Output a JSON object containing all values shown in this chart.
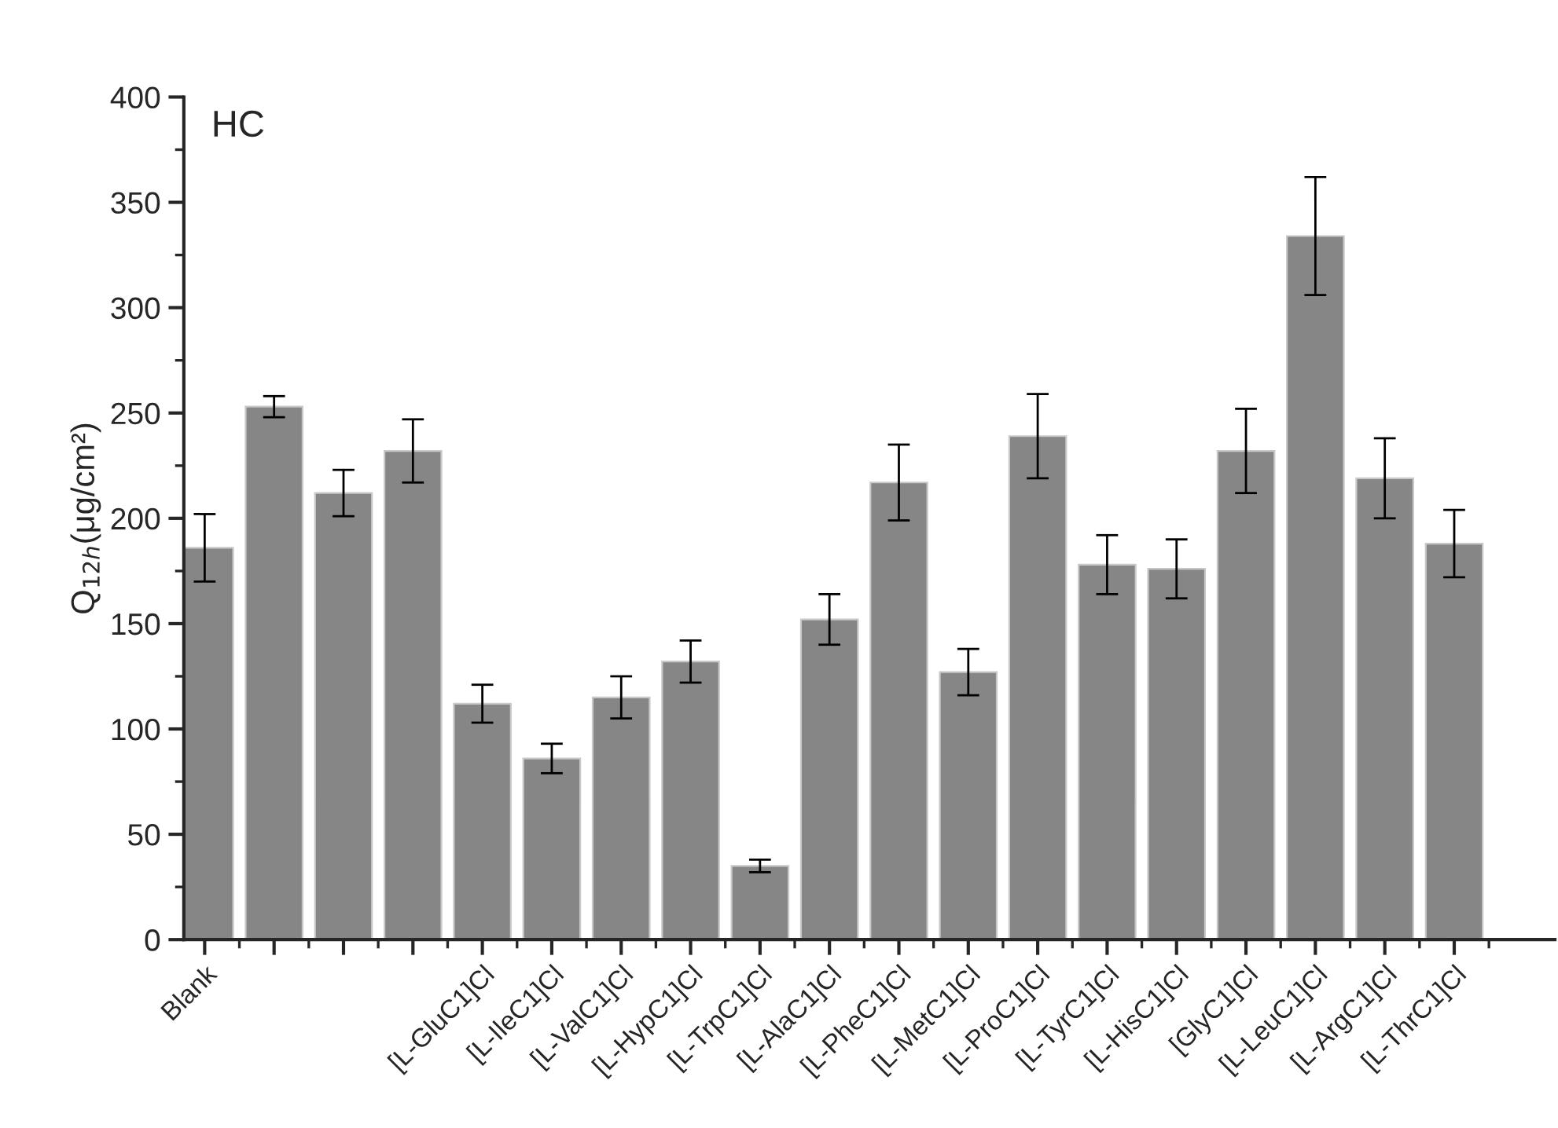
{
  "chart_data": {
    "type": "bar",
    "title": "HC",
    "ylabel": "Q$_{12h}$(μg/cm²)",
    "categories": [
      "Blank",
      null,
      null,
      null,
      "[L-GluC1]Cl",
      "[L-IleC1]Cl",
      "[L-ValC1]Cl",
      "[L-HypC1]Cl",
      "[L-TrpC1]Cl",
      "[L-AlaC1]Cl",
      "[L-PheC1]Cl",
      "[L-MetC1]Cl",
      "[L-ProC1]Cl",
      "[L-TyrC1]Cl",
      "[L-HisC1]Cl",
      "[GlyC1]Cl",
      "[L-LeuC1]Cl",
      "[L-ArgC1]Cl",
      "[L-ThrC1]Cl"
    ],
    "values": [
      186,
      253,
      212,
      232,
      112,
      86,
      115,
      132,
      35,
      152,
      217,
      127,
      239,
      178,
      176,
      232,
      334,
      219,
      188
    ],
    "errors": [
      16,
      5,
      11,
      15,
      9,
      7,
      10,
      10,
      3,
      12,
      18,
      11,
      20,
      14,
      14,
      20,
      28,
      19,
      16
    ],
    "color": "#868686",
    "ylim": [
      0,
      400
    ],
    "yticks": [
      0,
      50,
      100,
      150,
      200,
      250,
      300,
      350,
      400
    ],
    "grid": false,
    "legend": false
  }
}
